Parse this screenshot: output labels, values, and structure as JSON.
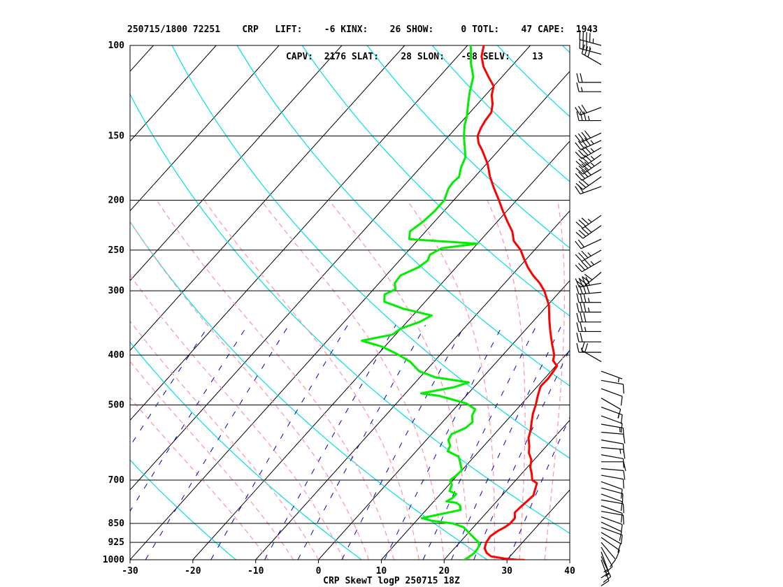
{
  "header": {
    "line1": "250715/1800 72251    CRP   LIFT:    -6 KINX:    26 SHOW:     0 TOTL:    47 CAPE:  1943",
    "line2": "                             CAPV:  2176 SLAT:    28 SLON:   -98 SELV:    13"
  },
  "chart_data": {
    "type": "line",
    "title": "",
    "xlabel": "CRP SkewT logP 250715 18Z",
    "ylabel": "",
    "x_ticks": [
      -30,
      -20,
      -10,
      0,
      10,
      20,
      30,
      40
    ],
    "y_ticks": [
      100,
      150,
      200,
      250,
      300,
      400,
      500,
      700,
      850,
      925,
      1000
    ],
    "xlim": [
      -30,
      40
    ],
    "ylim": [
      1000,
      100
    ],
    "y_scale": "log",
    "grid": true,
    "series": [
      {
        "name": "",
        "color": "#ff0000",
        "points": [
          [
            1001,
            32.8
          ],
          [
            1000,
            31.5
          ],
          [
            995,
            29.5
          ],
          [
            985,
            27
          ],
          [
            970,
            25.8
          ],
          [
            950,
            24.8
          ],
          [
            925,
            24.2
          ],
          [
            900,
            24
          ],
          [
            880,
            24.4
          ],
          [
            865,
            25
          ],
          [
            850,
            25.3
          ],
          [
            830,
            25.3
          ],
          [
            810,
            24.5
          ],
          [
            790,
            24.6
          ],
          [
            770,
            24.8
          ],
          [
            750,
            25
          ],
          [
            730,
            24.4
          ],
          [
            710,
            23.8
          ],
          [
            700,
            22.6
          ],
          [
            680,
            21.6
          ],
          [
            660,
            20.4
          ],
          [
            640,
            19.6
          ],
          [
            620,
            18.2
          ],
          [
            600,
            17.2
          ],
          [
            580,
            16
          ],
          [
            560,
            15.2
          ],
          [
            540,
            14.2
          ],
          [
            520,
            13.2
          ],
          [
            500,
            12.4
          ],
          [
            480,
            11.4
          ],
          [
            460,
            10.5
          ],
          [
            445,
            10.6
          ],
          [
            430,
            10.4
          ],
          [
            420,
            10.2
          ],
          [
            410,
            8.8
          ],
          [
            400,
            8.2
          ],
          [
            380,
            6.2
          ],
          [
            360,
            4.2
          ],
          [
            340,
            2.2
          ],
          [
            320,
            0.2
          ],
          [
            300,
            -2.6
          ],
          [
            290,
            -4.4
          ],
          [
            280,
            -6.6
          ],
          [
            270,
            -8.6
          ],
          [
            260,
            -10.4
          ],
          [
            250,
            -12.2
          ],
          [
            240,
            -14.6
          ],
          [
            230,
            -16.2
          ],
          [
            220,
            -18.4
          ],
          [
            210,
            -20.6
          ],
          [
            200,
            -22.8
          ],
          [
            190,
            -25.2
          ],
          [
            180,
            -27.6
          ],
          [
            170,
            -29.8
          ],
          [
            160,
            -32.6
          ],
          [
            155,
            -34.2
          ],
          [
            150,
            -35.4
          ],
          [
            145,
            -36
          ],
          [
            140,
            -36.4
          ],
          [
            135,
            -36.6
          ],
          [
            130,
            -37.6
          ],
          [
            125,
            -39
          ],
          [
            120,
            -40
          ],
          [
            115,
            -42.2
          ],
          [
            110,
            -44.4
          ],
          [
            105,
            -46.2
          ],
          [
            100,
            -47.4
          ]
        ]
      },
      {
        "name": "",
        "color": "#00ee00",
        "points": [
          [
            1001,
            23.2
          ],
          [
            990,
            23.5
          ],
          [
            975,
            23.8
          ],
          [
            960,
            23.8
          ],
          [
            940,
            23.6
          ],
          [
            925,
            23
          ],
          [
            905,
            21.5
          ],
          [
            885,
            20
          ],
          [
            865,
            18.5
          ],
          [
            850,
            16.2
          ],
          [
            840,
            12.5
          ],
          [
            830,
            10.5
          ],
          [
            800,
            15.5
          ],
          [
            785,
            14.8
          ],
          [
            775,
            13.8
          ],
          [
            770,
            12
          ],
          [
            758,
            12.5
          ],
          [
            745,
            12.5
          ],
          [
            735,
            11
          ],
          [
            715,
            10.5
          ],
          [
            700,
            9.5
          ],
          [
            690,
            9.8
          ],
          [
            670,
            10
          ],
          [
            660,
            9.4
          ],
          [
            645,
            8.5
          ],
          [
            630,
            7.5
          ],
          [
            615,
            5
          ],
          [
            600,
            4.6
          ],
          [
            585,
            3.5
          ],
          [
            570,
            3.2
          ],
          [
            555,
            4.5
          ],
          [
            540,
            4.8
          ],
          [
            525,
            3.8
          ],
          [
            510,
            3.4
          ],
          [
            497,
            1.2
          ],
          [
            480,
            -4.3
          ],
          [
            475,
            -7.5
          ],
          [
            462,
            -3.2
          ],
          [
            452,
            -1.5
          ],
          [
            442,
            -7.5
          ],
          [
            430,
            -11
          ],
          [
            412,
            -13.8
          ],
          [
            398,
            -17
          ],
          [
            385,
            -20.5
          ],
          [
            375,
            -24.5
          ],
          [
            365,
            -20.5
          ],
          [
            355,
            -20
          ],
          [
            345,
            -18
          ],
          [
            335,
            -17
          ],
          [
            325,
            -22.5
          ],
          [
            315,
            -26.5
          ],
          [
            305,
            -27.5
          ],
          [
            298,
            -26.5
          ],
          [
            290,
            -27.5
          ],
          [
            280,
            -27.7
          ],
          [
            270,
            -26
          ],
          [
            262,
            -25.5
          ],
          [
            255,
            -26
          ],
          [
            248,
            -25
          ],
          [
            243,
            -20
          ],
          [
            238,
            -31.5
          ],
          [
            230,
            -32.5
          ],
          [
            220,
            -31.8
          ],
          [
            210,
            -31.5
          ],
          [
            200,
            -31.5
          ],
          [
            195,
            -32
          ],
          [
            190,
            -32.5
          ],
          [
            185,
            -32.7
          ],
          [
            180,
            -32.5
          ],
          [
            173,
            -33.5
          ],
          [
            165,
            -34.3
          ],
          [
            157,
            -36
          ],
          [
            150,
            -37.6
          ],
          [
            143,
            -39
          ],
          [
            137,
            -40
          ],
          [
            130,
            -41.5
          ],
          [
            123,
            -43
          ],
          [
            115,
            -44.6
          ],
          [
            108,
            -47
          ],
          [
            103,
            -48.5
          ],
          [
            100,
            -49.5
          ]
        ]
      }
    ],
    "wind_profile": [
      {
        "p": 100,
        "dir": 285,
        "kt": 45
      },
      {
        "p": 104,
        "dir": 285,
        "kt": 35
      },
      {
        "p": 109,
        "dir": 300,
        "kt": 30
      },
      {
        "p": 118,
        "dir": 270,
        "kt": 20
      },
      {
        "p": 123,
        "dir": 270,
        "kt": 15
      },
      {
        "p": 132,
        "dir": 250,
        "kt": 30
      },
      {
        "p": 140,
        "dir": 270,
        "kt": 35
      },
      {
        "p": 148,
        "dir": 245,
        "kt": 40
      },
      {
        "p": 153,
        "dir": 245,
        "kt": 45
      },
      {
        "p": 158,
        "dir": 240,
        "kt": 45
      },
      {
        "p": 163,
        "dir": 235,
        "kt": 45
      },
      {
        "p": 168,
        "dir": 235,
        "kt": 45
      },
      {
        "p": 174,
        "dir": 240,
        "kt": 40
      },
      {
        "p": 180,
        "dir": 235,
        "kt": 30
      },
      {
        "p": 188,
        "dir": 250,
        "kt": 20
      },
      {
        "p": 214,
        "dir": 235,
        "kt": 35
      },
      {
        "p": 224,
        "dir": 235,
        "kt": 40
      },
      {
        "p": 238,
        "dir": 245,
        "kt": 20
      },
      {
        "p": 250,
        "dir": 240,
        "kt": 35
      },
      {
        "p": 262,
        "dir": 240,
        "kt": 45
      },
      {
        "p": 276,
        "dir": 230,
        "kt": 40
      },
      {
        "p": 290,
        "dir": 260,
        "kt": 40
      },
      {
        "p": 302,
        "dir": 265,
        "kt": 40
      },
      {
        "p": 316,
        "dir": 270,
        "kt": 35
      },
      {
        "p": 330,
        "dir": 270,
        "kt": 35
      },
      {
        "p": 345,
        "dir": 270,
        "kt": 30
      },
      {
        "p": 360,
        "dir": 270,
        "kt": 25
      },
      {
        "p": 377,
        "dir": 270,
        "kt": 20
      },
      {
        "p": 395,
        "dir": 270,
        "kt": 15
      },
      {
        "p": 412,
        "dir": 300,
        "kt": 20
      },
      {
        "p": 430,
        "dir": 110,
        "kt": 5
      },
      {
        "p": 448,
        "dir": 100,
        "kt": 10
      },
      {
        "p": 465,
        "dir": 110,
        "kt": 10
      },
      {
        "p": 485,
        "dir": 120,
        "kt": 10
      },
      {
        "p": 505,
        "dir": 110,
        "kt": 15
      },
      {
        "p": 525,
        "dir": 110,
        "kt": 10
      },
      {
        "p": 545,
        "dir": 100,
        "kt": 15
      },
      {
        "p": 565,
        "dir": 95,
        "kt": 10
      },
      {
        "p": 585,
        "dir": 100,
        "kt": 10
      },
      {
        "p": 605,
        "dir": 95,
        "kt": 15
      },
      {
        "p": 625,
        "dir": 100,
        "kt": 10
      },
      {
        "p": 645,
        "dir": 90,
        "kt": 10
      },
      {
        "p": 665,
        "dir": 95,
        "kt": 10
      },
      {
        "p": 685,
        "dir": 100,
        "kt": 10
      },
      {
        "p": 705,
        "dir": 110,
        "kt": 10
      },
      {
        "p": 725,
        "dir": 105,
        "kt": 10
      },
      {
        "p": 745,
        "dir": 110,
        "kt": 10
      },
      {
        "p": 765,
        "dir": 100,
        "kt": 10
      },
      {
        "p": 785,
        "dir": 110,
        "kt": 10
      },
      {
        "p": 805,
        "dir": 100,
        "kt": 10
      },
      {
        "p": 825,
        "dir": 110,
        "kt": 10
      },
      {
        "p": 845,
        "dir": 115,
        "kt": 10
      },
      {
        "p": 865,
        "dir": 110,
        "kt": 10
      },
      {
        "p": 885,
        "dir": 120,
        "kt": 10
      },
      {
        "p": 905,
        "dir": 125,
        "kt": 10
      },
      {
        "p": 925,
        "dir": 140,
        "kt": 10
      },
      {
        "p": 945,
        "dir": 150,
        "kt": 10
      },
      {
        "p": 965,
        "dir": 160,
        "kt": 15
      },
      {
        "p": 985,
        "dir": 155,
        "kt": 15
      },
      {
        "p": 1000,
        "dir": 160,
        "kt": 10
      }
    ],
    "colors": {
      "isotherm": "#000000",
      "dry_adiabat": "#00e0e0",
      "moist_adiabat": "#ff9ab0",
      "mixing_ratio": "#0000cc",
      "wind_barb": "#000000"
    }
  }
}
